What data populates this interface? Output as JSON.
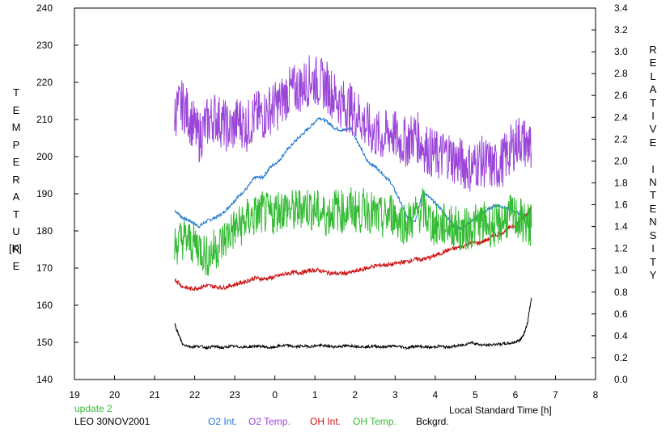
{
  "chart_data": {
    "type": "line",
    "left_axis": {
      "label_chars": [
        "T",
        "E",
        "M",
        "P",
        "E",
        "R",
        "A",
        "T",
        "U",
        "R",
        "E"
      ],
      "unit": "[K]",
      "range": [
        140,
        240
      ],
      "ticks": [
        140,
        150,
        160,
        170,
        180,
        190,
        200,
        210,
        220,
        230,
        240
      ]
    },
    "right_axis": {
      "label_chars": [
        "R",
        "E",
        "L",
        "A",
        "T",
        "I",
        "V",
        "E",
        " ",
        "I",
        "N",
        "T",
        "E",
        "N",
        "S",
        "I",
        "T",
        "Y"
      ],
      "range": [
        0.0,
        3.4
      ],
      "ticks": [
        "0.0",
        "0.2",
        "0.4",
        "0.6",
        "0.8",
        "1.0",
        "1.2",
        "1.4",
        "1.6",
        "1.8",
        "2.0",
        "2.2",
        "2.4",
        "2.6",
        "2.8",
        "3.0",
        "3.2",
        "3.4"
      ]
    },
    "x_axis": {
      "label": "Local Standard Time [h]",
      "ticks": [
        "19",
        "20",
        "21",
        "22",
        "23",
        "0",
        "1",
        "2",
        "3",
        "4",
        "5",
        "6",
        "7",
        "8"
      ],
      "range": [
        19,
        32
      ]
    },
    "grid": false,
    "update_note": "update 2",
    "site_date": "LEO 30NOV2001",
    "legend_placement": "bottom",
    "series": [
      {
        "name": "O2 Int.",
        "axis": "right",
        "color": "#1f78d1",
        "x": [
          21.5,
          21.7,
          21.9,
          22.1,
          22.3,
          22.5,
          22.7,
          22.9,
          23.1,
          23.3,
          23.5,
          23.7,
          23.9,
          24.1,
          24.3,
          24.5,
          24.7,
          24.9,
          25.1,
          25.3,
          25.5,
          25.7,
          25.9,
          26.1,
          26.3,
          26.5,
          26.7,
          26.9,
          27.1,
          27.3,
          27.5,
          27.7,
          27.9,
          28.1,
          28.3,
          28.5,
          28.7,
          28.9,
          29.1,
          29.3,
          29.5,
          29.7,
          29.9,
          30.1,
          30.3,
          30.4
        ],
        "values": [
          1.55,
          1.48,
          1.45,
          1.4,
          1.45,
          1.48,
          1.52,
          1.6,
          1.68,
          1.75,
          1.85,
          1.85,
          1.95,
          2.0,
          2.1,
          2.18,
          2.25,
          2.32,
          2.4,
          2.36,
          2.3,
          2.28,
          2.3,
          2.15,
          2.0,
          1.95,
          1.88,
          1.8,
          1.65,
          1.48,
          1.45,
          1.72,
          1.65,
          1.58,
          1.48,
          1.4,
          1.38,
          1.45,
          1.5,
          1.55,
          1.6,
          1.58,
          1.55,
          1.52,
          1.5,
          1.58
        ]
      },
      {
        "name": "O2 Temp.",
        "axis": "left",
        "color": "#9b45d9",
        "x": [
          21.5,
          21.7,
          21.9,
          22.1,
          22.3,
          22.5,
          22.7,
          22.9,
          23.1,
          23.3,
          23.5,
          23.7,
          23.9,
          24.1,
          24.3,
          24.5,
          24.7,
          24.9,
          25.1,
          25.3,
          25.5,
          25.7,
          25.9,
          26.1,
          26.3,
          26.5,
          26.7,
          26.9,
          27.1,
          27.3,
          27.5,
          27.7,
          27.9,
          28.1,
          28.3,
          28.5,
          28.7,
          28.9,
          29.1,
          29.3,
          29.5,
          29.7,
          29.9,
          30.1,
          30.3,
          30.4
        ],
        "values": [
          212,
          214,
          210,
          205,
          209,
          211,
          209,
          207,
          210,
          208,
          211,
          211,
          213,
          214,
          217,
          218,
          219,
          221,
          220,
          219,
          216,
          214,
          213,
          211,
          208,
          206,
          205,
          207,
          204,
          204,
          206,
          203,
          201,
          200,
          201,
          199,
          198,
          197,
          199,
          198,
          197,
          199,
          202,
          205,
          203,
          201
        ]
      },
      {
        "name": "OH Int.",
        "axis": "right",
        "color": "#cc1111",
        "x": [
          21.5,
          21.7,
          21.9,
          22.1,
          22.3,
          22.5,
          22.7,
          22.9,
          23.1,
          23.3,
          23.5,
          23.7,
          23.9,
          24.1,
          24.3,
          24.5,
          24.7,
          24.9,
          25.1,
          25.3,
          25.5,
          25.7,
          25.9,
          26.1,
          26.3,
          26.5,
          26.7,
          26.9,
          27.1,
          27.3,
          27.5,
          27.7,
          27.9,
          28.1,
          28.3,
          28.5,
          28.7,
          28.9,
          29.1,
          29.3,
          29.5,
          29.7,
          29.9,
          30.1,
          30.3,
          30.4
        ],
        "values": [
          0.92,
          0.85,
          0.83,
          0.84,
          0.86,
          0.85,
          0.84,
          0.86,
          0.88,
          0.9,
          0.93,
          0.92,
          0.93,
          0.95,
          0.97,
          0.98,
          0.98,
          1.0,
          1.0,
          0.98,
          0.97,
          0.97,
          0.98,
          1.0,
          1.02,
          1.04,
          1.05,
          1.05,
          1.07,
          1.08,
          1.1,
          1.1,
          1.12,
          1.15,
          1.18,
          1.2,
          1.22,
          1.25,
          1.25,
          1.28,
          1.32,
          1.35,
          1.4,
          1.44,
          1.52,
          1.58
        ]
      },
      {
        "name": "OH Temp.",
        "axis": "left",
        "color": "#33bb33",
        "x": [
          21.5,
          21.7,
          21.9,
          22.1,
          22.3,
          22.5,
          22.7,
          22.9,
          23.1,
          23.3,
          23.5,
          23.7,
          23.9,
          24.1,
          24.3,
          24.5,
          24.7,
          24.9,
          25.1,
          25.3,
          25.5,
          25.7,
          25.9,
          26.1,
          26.3,
          26.5,
          26.7,
          26.9,
          27.1,
          27.3,
          27.5,
          27.7,
          27.9,
          28.1,
          28.3,
          28.5,
          28.7,
          28.9,
          29.1,
          29.3,
          29.5,
          29.7,
          29.9,
          30.1,
          30.3,
          30.4
        ],
        "values": [
          176,
          178,
          177,
          176,
          173,
          175,
          177,
          180,
          181,
          183,
          184,
          185,
          184,
          186,
          186,
          185,
          187,
          186,
          185,
          184,
          186,
          185,
          186,
          185,
          186,
          184,
          183,
          185,
          183,
          182,
          184,
          186,
          182,
          181,
          182,
          181,
          180,
          181,
          182,
          182,
          181,
          183,
          184,
          183,
          182,
          181
        ]
      },
      {
        "name": "Bckgrd.",
        "axis": "left",
        "color": "#000000",
        "x": [
          21.5,
          21.6,
          21.7,
          21.9,
          22.1,
          22.3,
          22.5,
          22.7,
          22.9,
          23.1,
          23.3,
          23.5,
          23.7,
          23.9,
          24.1,
          24.3,
          24.5,
          24.7,
          24.9,
          25.1,
          25.3,
          25.5,
          25.7,
          25.9,
          26.1,
          26.3,
          26.5,
          26.7,
          26.9,
          27.1,
          27.3,
          27.5,
          27.7,
          27.9,
          28.1,
          28.3,
          28.5,
          28.7,
          28.9,
          29.1,
          29.3,
          29.5,
          29.7,
          29.9,
          30.1,
          30.2,
          30.3,
          30.4
        ],
        "values": [
          155,
          152,
          149.5,
          148.8,
          149,
          148.6,
          148.9,
          148.5,
          149,
          148.8,
          148.7,
          149,
          148.9,
          148.5,
          149,
          149.2,
          148.8,
          149,
          148.9,
          149.2,
          149,
          148.8,
          149,
          149.1,
          148.9,
          148.8,
          149,
          148.7,
          149,
          148.9,
          148.5,
          149,
          148.8,
          148.6,
          149,
          148.7,
          149,
          149.3,
          150,
          149.4,
          149.2,
          149.5,
          149.6,
          149.8,
          150.5,
          152,
          155,
          162
        ]
      }
    ]
  }
}
